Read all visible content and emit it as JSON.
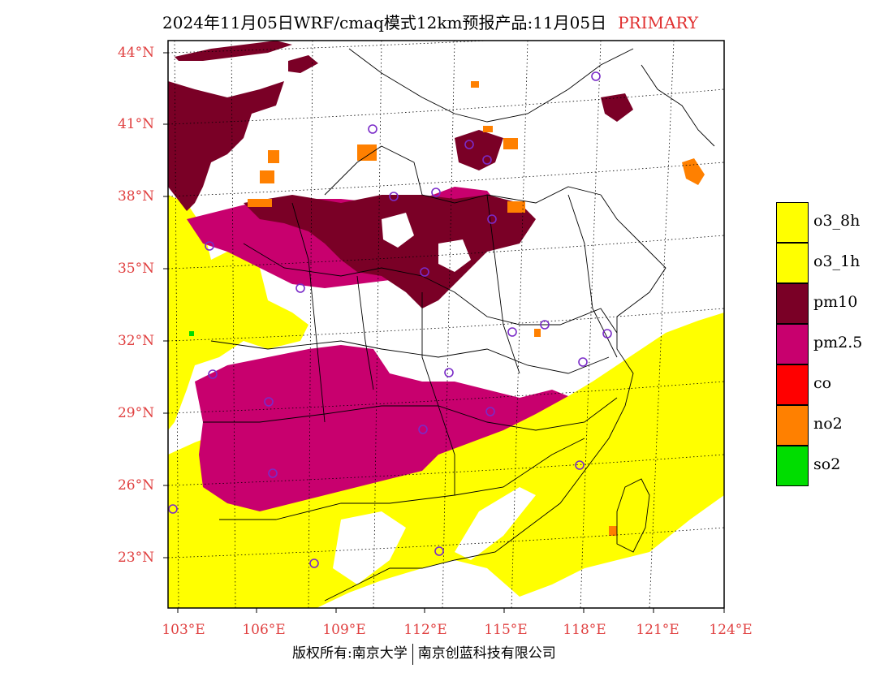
{
  "title": {
    "text": "2024年11月05日WRF/cmaq模式12km预报产品:11月05日",
    "tag": "PRIMARY"
  },
  "latitude_labels": [
    "44°N",
    "41°N",
    "38°N",
    "35°N",
    "32°N",
    "29°N",
    "26°N",
    "23°N"
  ],
  "longitude_labels": [
    "103°E",
    "106°E",
    "109°E",
    "112°E",
    "115°E",
    "118°E",
    "121°E",
    "124°E"
  ],
  "legend": [
    {
      "label": "o3_8h",
      "color": "#ffff00"
    },
    {
      "label": "o3_1h",
      "color": "#ffff00"
    },
    {
      "label": "pm10",
      "color": "#7a0026"
    },
    {
      "label": "pm2.5",
      "color": "#c8006e"
    },
    {
      "label": "co",
      "color": "#ff0000"
    },
    {
      "label": "no2",
      "color": "#ff8000"
    },
    {
      "label": "so2",
      "color": "#00dd00"
    }
  ],
  "footer": {
    "left": "版权所有:南京大学",
    "right": "南京创蓝科技有限公司"
  }
}
